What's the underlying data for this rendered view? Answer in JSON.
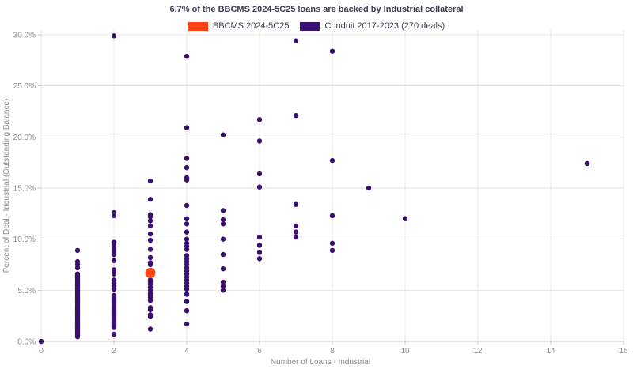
{
  "header": {
    "title": "6.7% of the BBCMS 2024-5C25 loans are backed by Industrial collateral"
  },
  "legend": [
    {
      "label": "BBCMS 2024-5C25",
      "color": "#ff4516"
    },
    {
      "label": "Conduit 2017-2023 (270 deals)",
      "color": "#3b0f70"
    }
  ],
  "colors": {
    "background": "#ffffff",
    "title_text": "#3c3c55",
    "tick_text": "#8c8c8c",
    "gridline": "#e6e6e6",
    "axis_line": "#c8c8c8",
    "bbcms": "#ff4516",
    "conduit": "#3b0f70"
  },
  "chart_data": {
    "type": "scatter",
    "title": "6.7% of the BBCMS 2024-5C25 loans are backed by Industrial collateral",
    "xlabel": "Number of Loans - Industrial",
    "ylabel": "Percent of Deal - Industrial (Outstanding Balance)",
    "xlim": [
      0,
      16
    ],
    "ylim": [
      0,
      30
    ],
    "x_ticks": [
      0,
      2,
      4,
      6,
      8,
      10,
      12,
      14,
      16
    ],
    "y_ticks": [
      0,
      5,
      10,
      15,
      20,
      25,
      30
    ],
    "y_tick_labels": [
      "0.0%",
      "5.0%",
      "10.0%",
      "15.0%",
      "20.0%",
      "25.0%",
      "30.0%"
    ],
    "grid": true,
    "legend_position": "top-center",
    "series": [
      {
        "name": "Conduit 2017-2023 (270 deals)",
        "color": "#3b0f70",
        "marker_radius": 3.2,
        "points": [
          [
            0,
            0.0
          ],
          [
            1,
            8.9
          ],
          [
            1,
            7.8
          ],
          [
            1,
            7.5
          ],
          [
            1,
            7.2
          ],
          [
            1,
            6.6
          ],
          [
            1,
            6.45
          ],
          [
            1,
            6.3
          ],
          [
            1,
            6.15
          ],
          [
            1,
            6.0
          ],
          [
            1,
            5.85
          ],
          [
            1,
            5.7
          ],
          [
            1,
            5.55
          ],
          [
            1,
            5.4
          ],
          [
            1,
            5.25
          ],
          [
            1,
            5.1
          ],
          [
            1,
            4.95
          ],
          [
            1,
            4.8
          ],
          [
            1,
            4.65
          ],
          [
            1,
            4.5
          ],
          [
            1,
            4.35
          ],
          [
            1,
            4.2
          ],
          [
            1,
            4.05
          ],
          [
            1,
            3.9
          ],
          [
            1,
            3.75
          ],
          [
            1,
            3.6
          ],
          [
            1,
            3.45
          ],
          [
            1,
            3.3
          ],
          [
            1,
            3.15
          ],
          [
            1,
            3.0
          ],
          [
            1,
            2.85
          ],
          [
            1,
            2.7
          ],
          [
            1,
            2.55
          ],
          [
            1,
            2.4
          ],
          [
            1,
            2.25
          ],
          [
            1,
            2.1
          ],
          [
            1,
            1.95
          ],
          [
            1,
            1.8
          ],
          [
            1,
            1.65
          ],
          [
            1,
            1.5
          ],
          [
            1,
            1.35
          ],
          [
            1,
            1.2
          ],
          [
            1,
            1.05
          ],
          [
            1,
            0.9
          ],
          [
            1,
            0.75
          ],
          [
            1,
            0.6
          ],
          [
            1,
            0.45
          ],
          [
            2,
            29.9
          ],
          [
            2,
            12.6
          ],
          [
            2,
            12.3
          ],
          [
            2,
            9.7
          ],
          [
            2,
            9.5
          ],
          [
            2,
            9.3
          ],
          [
            2,
            9.1
          ],
          [
            2,
            8.9
          ],
          [
            2,
            8.7
          ],
          [
            2,
            8.5
          ],
          [
            2,
            7.9
          ],
          [
            2,
            7.0
          ],
          [
            2,
            6.6
          ],
          [
            2,
            6.0
          ],
          [
            2,
            5.7
          ],
          [
            2,
            5.4
          ],
          [
            2,
            5.1
          ],
          [
            2,
            4.5
          ],
          [
            2,
            4.35
          ],
          [
            2,
            4.2
          ],
          [
            2,
            4.05
          ],
          [
            2,
            3.9
          ],
          [
            2,
            3.75
          ],
          [
            2,
            3.6
          ],
          [
            2,
            3.45
          ],
          [
            2,
            3.3
          ],
          [
            2,
            3.15
          ],
          [
            2,
            3.0
          ],
          [
            2,
            2.85
          ],
          [
            2,
            2.7
          ],
          [
            2,
            2.55
          ],
          [
            2,
            2.4
          ],
          [
            2,
            2.25
          ],
          [
            2,
            2.1
          ],
          [
            2,
            1.95
          ],
          [
            2,
            1.8
          ],
          [
            2,
            1.65
          ],
          [
            2,
            1.5
          ],
          [
            2,
            1.35
          ],
          [
            2,
            0.7
          ],
          [
            3,
            15.7
          ],
          [
            3,
            13.9
          ],
          [
            3,
            12.4
          ],
          [
            3,
            12.2
          ],
          [
            3,
            11.8
          ],
          [
            3,
            11.3
          ],
          [
            3,
            10.5
          ],
          [
            3,
            9.9
          ],
          [
            3,
            9.0
          ],
          [
            3,
            8.2
          ],
          [
            3,
            7.7
          ],
          [
            3,
            7.5
          ],
          [
            3,
            6.0
          ],
          [
            3,
            5.8
          ],
          [
            3,
            5.6
          ],
          [
            3,
            5.3
          ],
          [
            3,
            5.0
          ],
          [
            3,
            4.7
          ],
          [
            3,
            4.5
          ],
          [
            3,
            4.3
          ],
          [
            3,
            4.0
          ],
          [
            3,
            3.3
          ],
          [
            3,
            3.1
          ],
          [
            3,
            2.6
          ],
          [
            3,
            2.4
          ],
          [
            3,
            1.2
          ],
          [
            4,
            27.9
          ],
          [
            4,
            20.9
          ],
          [
            4,
            17.9
          ],
          [
            4,
            17.0
          ],
          [
            4,
            16.0
          ],
          [
            4,
            15.8
          ],
          [
            4,
            13.3
          ],
          [
            4,
            12.0
          ],
          [
            4,
            11.5
          ],
          [
            4,
            10.7
          ],
          [
            4,
            10.0
          ],
          [
            4,
            9.6
          ],
          [
            4,
            9.3
          ],
          [
            4,
            9.0
          ],
          [
            4,
            8.4
          ],
          [
            4,
            8.1
          ],
          [
            4,
            7.8
          ],
          [
            4,
            7.5
          ],
          [
            4,
            7.2
          ],
          [
            4,
            6.9
          ],
          [
            4,
            6.6
          ],
          [
            4,
            6.3
          ],
          [
            4,
            6.0
          ],
          [
            4,
            5.7
          ],
          [
            4,
            5.4
          ],
          [
            4,
            5.1
          ],
          [
            4,
            4.6
          ],
          [
            4,
            3.9
          ],
          [
            4,
            3.0
          ],
          [
            4,
            1.7
          ],
          [
            5,
            20.2
          ],
          [
            5,
            12.8
          ],
          [
            5,
            11.9
          ],
          [
            5,
            11.5
          ],
          [
            5,
            10.0
          ],
          [
            5,
            8.5
          ],
          [
            5,
            7.1
          ],
          [
            5,
            5.8
          ],
          [
            5,
            5.4
          ],
          [
            5,
            5.0
          ],
          [
            6,
            21.7
          ],
          [
            6,
            19.6
          ],
          [
            6,
            16.4
          ],
          [
            6,
            15.1
          ],
          [
            6,
            10.2
          ],
          [
            6,
            9.4
          ],
          [
            6,
            8.7
          ],
          [
            6,
            8.1
          ],
          [
            7,
            29.4
          ],
          [
            7,
            22.1
          ],
          [
            7,
            13.4
          ],
          [
            7,
            11.3
          ],
          [
            7,
            10.7
          ],
          [
            7,
            10.2
          ],
          [
            8,
            28.4
          ],
          [
            8,
            17.7
          ],
          [
            8,
            12.3
          ],
          [
            8,
            9.6
          ],
          [
            8,
            8.9
          ],
          [
            9,
            15.0
          ],
          [
            10,
            12.0
          ],
          [
            15,
            17.4
          ]
        ]
      },
      {
        "name": "BBCMS 2024-5C25",
        "color": "#ff4516",
        "marker_radius": 6.5,
        "points": [
          [
            3,
            6.7
          ]
        ]
      }
    ]
  }
}
